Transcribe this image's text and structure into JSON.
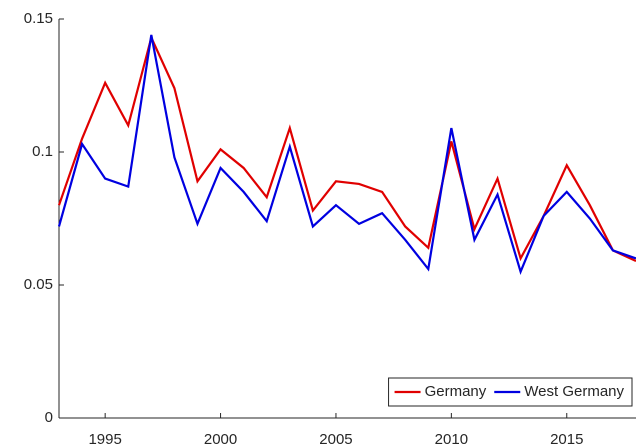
{
  "chart_data": {
    "type": "line",
    "x": [
      1993,
      1994,
      1995,
      1996,
      1997,
      1998,
      1999,
      2000,
      2001,
      2002,
      2003,
      2004,
      2005,
      2006,
      2007,
      2008,
      2009,
      2010,
      2011,
      2012,
      2013,
      2014,
      2015,
      2016,
      2017,
      2018
    ],
    "series": [
      {
        "name": "Germany",
        "color": "#e00000",
        "values": [
          0.08,
          0.105,
          0.126,
          0.11,
          0.143,
          0.124,
          0.089,
          0.101,
          0.094,
          0.083,
          0.109,
          0.078,
          0.089,
          0.088,
          0.085,
          0.072,
          0.064,
          0.104,
          0.071,
          0.09,
          0.06,
          0.076,
          0.095,
          0.08,
          0.063,
          0.059
        ]
      },
      {
        "name": "West Germany",
        "color": "#0000e0",
        "values": [
          0.072,
          0.103,
          0.09,
          0.087,
          0.144,
          0.098,
          0.073,
          0.094,
          0.085,
          0.074,
          0.102,
          0.072,
          0.08,
          0.073,
          0.077,
          0.067,
          0.056,
          0.109,
          0.067,
          0.084,
          0.055,
          0.076,
          0.085,
          0.075,
          0.063,
          0.06
        ]
      }
    ],
    "xlim": [
      1993,
      2018
    ],
    "xticks": [
      1995,
      2000,
      2005,
      2010,
      2015
    ],
    "ylim": [
      0,
      0.15
    ],
    "yticks": [
      0,
      0.05,
      0.1,
      0.15
    ],
    "legend": "lower right"
  }
}
